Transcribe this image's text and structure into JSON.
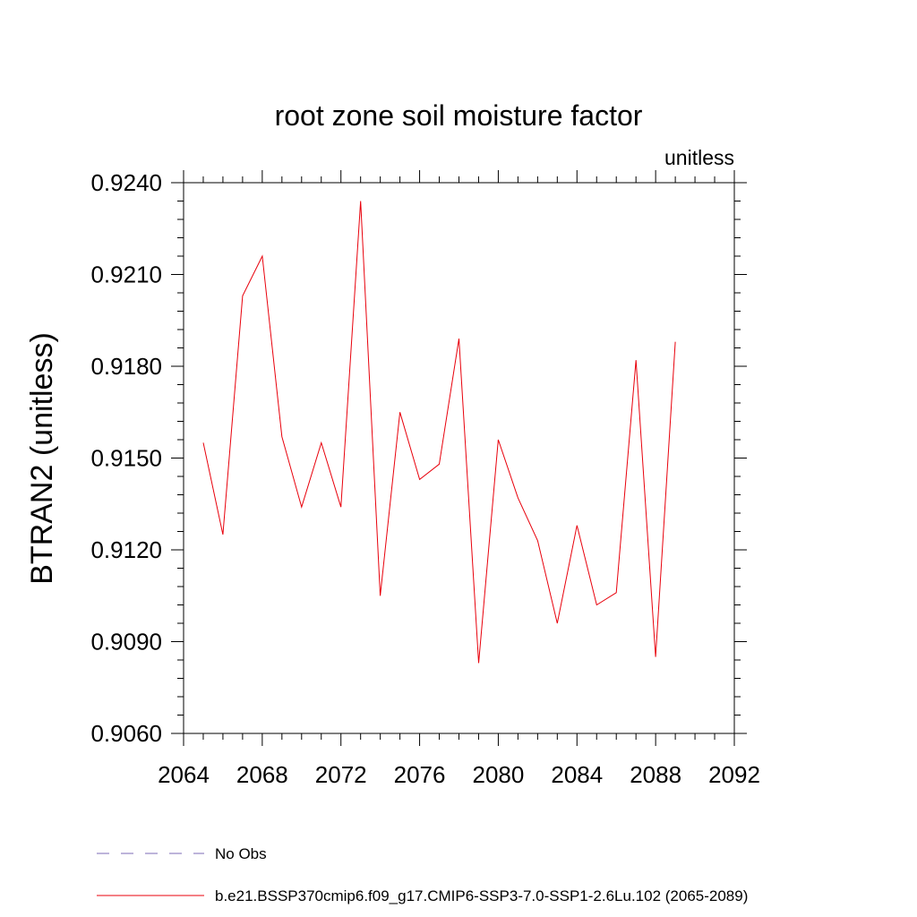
{
  "chart_data": {
    "type": "line",
    "title": "root zone soil moisture factor",
    "units_label": "unitless",
    "ylabel": "BTRAN2  (unitless)",
    "xlabel": "",
    "xlim": [
      2064,
      2092
    ],
    "ylim": [
      0.906,
      0.924
    ],
    "x_ticks": [
      "2064",
      "2068",
      "2072",
      "2076",
      "2080",
      "2084",
      "2088",
      "2092"
    ],
    "y_ticks": [
      "0.9060",
      "0.9090",
      "0.9120",
      "0.9150",
      "0.9180",
      "0.9210",
      "0.9240"
    ],
    "grid": false,
    "legend_position": "bottom",
    "series": [
      {
        "name": "b.e21.BSSP370cmip6.f09_g17.CMIP6-SSP3-7.0-SSP1-2.6Lu.102 (2065-2089)",
        "color": "#e8000b",
        "style": "solid",
        "x": [
          2065,
          2066,
          2067,
          2068,
          2069,
          2070,
          2071,
          2072,
          2073,
          2074,
          2075,
          2076,
          2077,
          2078,
          2079,
          2080,
          2081,
          2082,
          2083,
          2084,
          2085,
          2086,
          2087,
          2088,
          2089
        ],
        "y": [
          0.9155,
          0.9125,
          0.9203,
          0.9216,
          0.9157,
          0.9134,
          0.9155,
          0.9134,
          0.9234,
          0.9105,
          0.9165,
          0.9143,
          0.9148,
          0.9189,
          0.9083,
          0.9156,
          0.9137,
          0.9123,
          0.9096,
          0.9128,
          0.9102,
          0.9106,
          0.9182,
          0.9085,
          0.9188
        ]
      }
    ],
    "legend": [
      {
        "label": "No Obs",
        "color": "#7b68b5",
        "style": "dashed"
      },
      {
        "label": "b.e21.BSSP370cmip6.f09_g17.CMIP6-SSP3-7.0-SSP1-2.6Lu.102 (2065-2089)",
        "color": "#e8000b",
        "style": "solid"
      }
    ]
  }
}
